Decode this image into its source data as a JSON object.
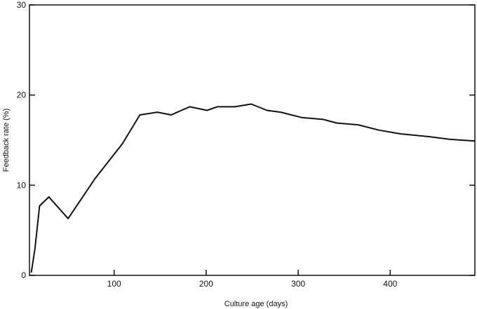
{
  "chart_data": {
    "type": "line",
    "title": "",
    "xlabel": "Culture age (days)",
    "ylabel": "Feedback rate (%)",
    "xlim": [
      8,
      492
    ],
    "ylim": [
      0,
      30
    ],
    "xticks": [
      100,
      200,
      300,
      400
    ],
    "yticks": [
      0,
      10,
      20,
      30
    ],
    "grid": false,
    "line_color": "#111111",
    "series": [
      {
        "x": [
          10,
          14,
          19,
          29,
          50,
          79,
          92,
          109,
          128,
          147,
          162,
          182,
          201,
          212,
          231,
          249,
          266,
          281,
          304,
          327,
          342,
          365,
          388,
          411,
          441,
          464,
          492
        ],
        "y": [
          0.3,
          3.0,
          7.7,
          8.7,
          6.3,
          10.7,
          12.4,
          14.6,
          17.8,
          18.1,
          17.8,
          18.7,
          18.3,
          18.7,
          18.7,
          19.0,
          18.3,
          18.1,
          17.5,
          17.3,
          16.9,
          16.7,
          16.1,
          15.7,
          15.4,
          15.1,
          14.9
        ]
      }
    ]
  }
}
